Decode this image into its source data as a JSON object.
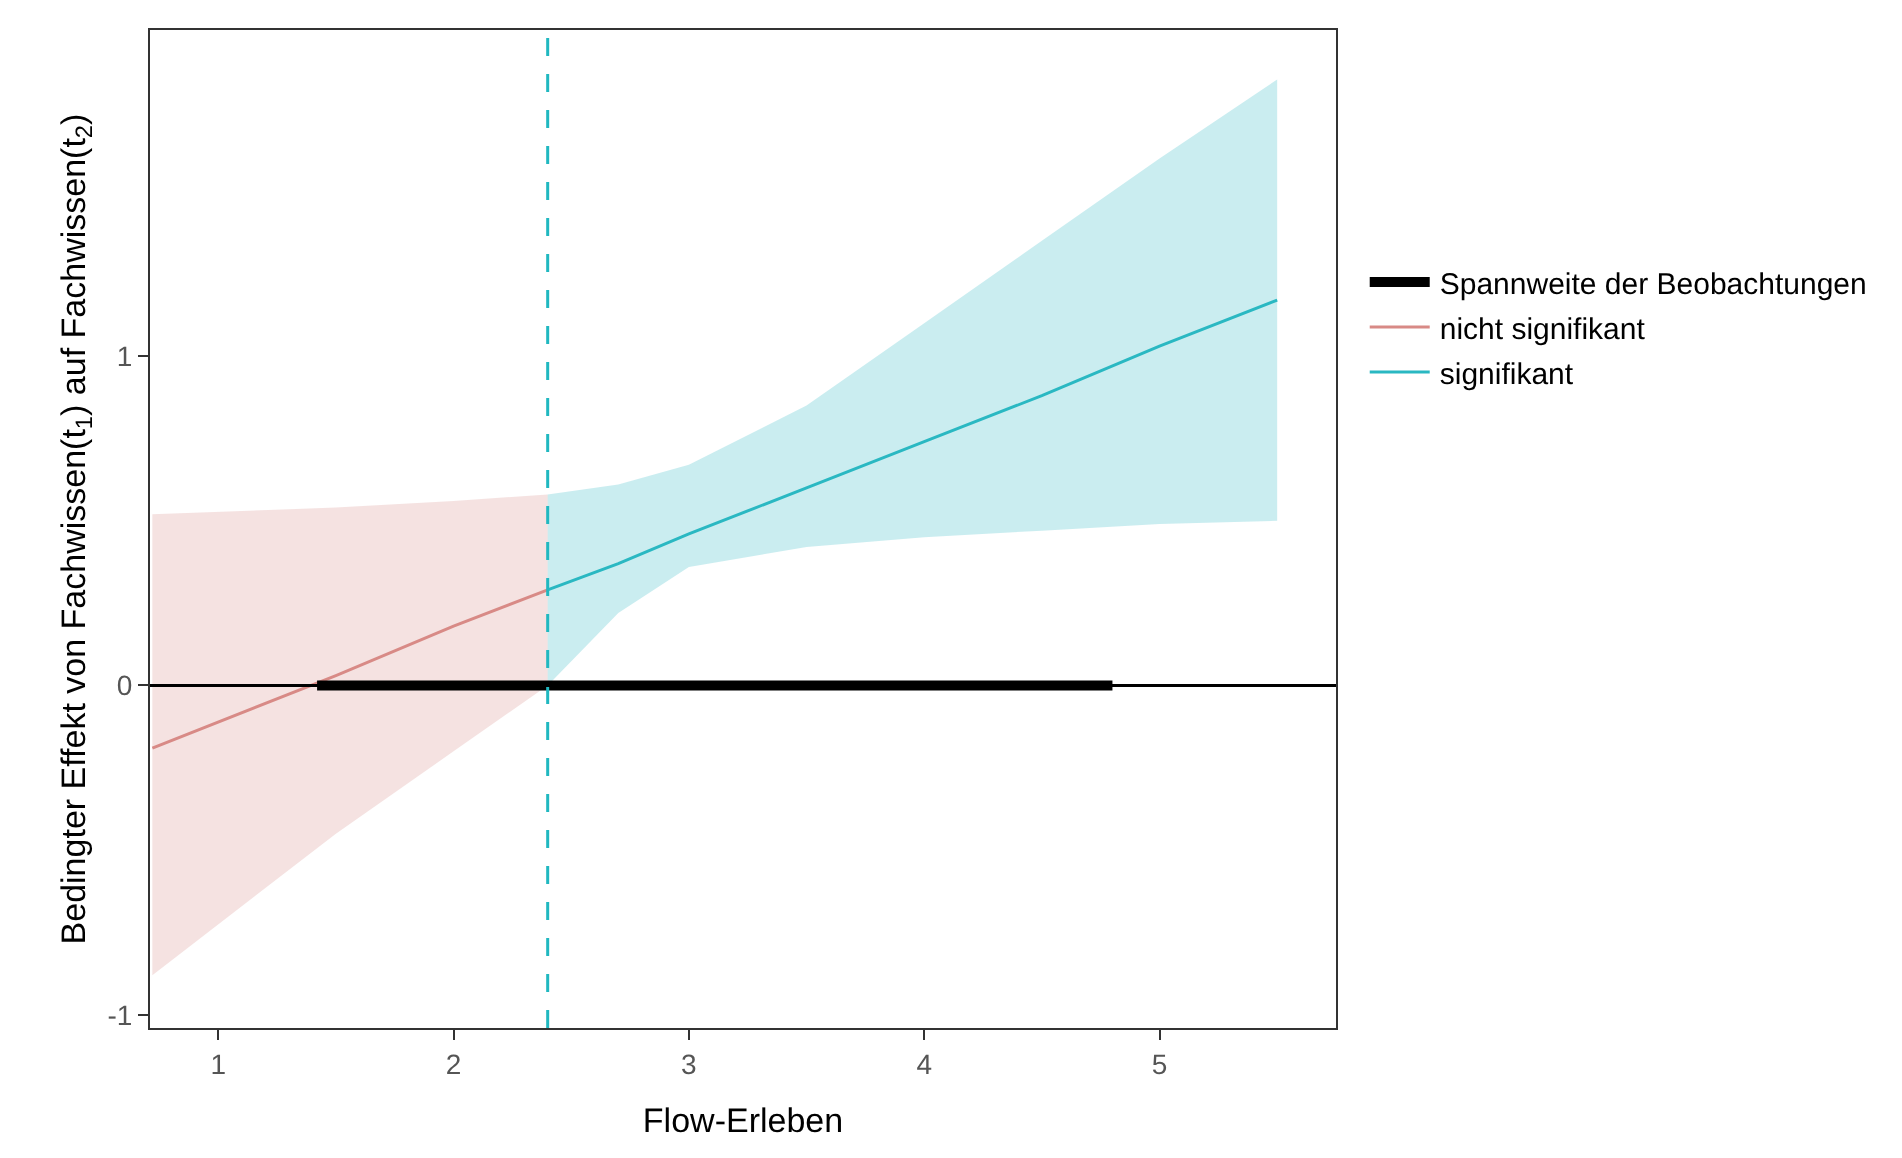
{
  "chart_data": {
    "type": "line",
    "xlabel": "Flow-Erleben",
    "ylabel": "Bedingter Effekt von Fachwissen(t$_{1}$) auf Fachwissen(t$_{2}$)",
    "xlim": [
      0.71,
      5.75
    ],
    "ylim": [
      -1.04,
      1.99
    ],
    "xticks": [
      1,
      2,
      3,
      4,
      5
    ],
    "yticks": [
      -1,
      0,
      1
    ],
    "legend": "right",
    "marker": "none",
    "line_style": "solid",
    "series": [
      {
        "name": "Spannweite der Beobachtungen",
        "color": "#000000",
        "x": [
          1.42,
          4.8
        ],
        "values": [
          0,
          0
        ]
      },
      {
        "name": "nicht signifikant",
        "color": "#d88a86",
        "x": [
          0.72,
          1.5,
          2,
          2.4
        ],
        "values": [
          -0.19,
          0.03,
          0.18,
          0.29
        ],
        "lower": [
          -0.88,
          -0.45,
          -0.2,
          0.0
        ],
        "upper": [
          0.52,
          0.54,
          0.56,
          0.58
        ]
      },
      {
        "name": "signifikant",
        "color": "#2ab8c2",
        "x": [
          2.4,
          2.7,
          3,
          3.5,
          4,
          4.5,
          5,
          5.5
        ],
        "values": [
          0.29,
          0.37,
          0.46,
          0.6,
          0.74,
          0.88,
          1.03,
          1.17
        ],
        "lower": [
          0.0,
          0.22,
          0.36,
          0.42,
          0.45,
          0.47,
          0.49,
          0.5
        ],
        "upper": [
          0.58,
          0.61,
          0.67,
          0.85,
          1.1,
          1.35,
          1.6,
          1.84
        ]
      }
    ],
    "ref_lines": [
      {
        "axis": "x",
        "value": 2.4,
        "color": "#20b8c0",
        "line_style": "dashed"
      },
      {
        "axis": "y",
        "value": 0,
        "color": "#000000",
        "line_style": "solid"
      }
    ]
  }
}
